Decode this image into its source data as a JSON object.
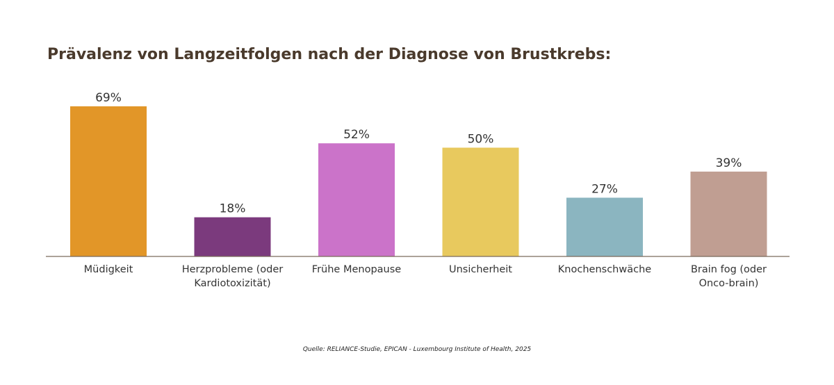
{
  "chart_data": {
    "type": "bar",
    "title": "Prävalenz von Langzeitfolgen nach der Diagnose von Brustkrebs:",
    "xlabel": "",
    "ylabel": "",
    "ylim": [
      0,
      69
    ],
    "grid": false,
    "legend": "none",
    "categories": [
      [
        "Müdigkeit"
      ],
      [
        "Herzprobleme (oder",
        "Kardiotoxizität)"
      ],
      [
        "Frühe Menopause"
      ],
      [
        "Unsicherheit"
      ],
      [
        "Knochenschwäche"
      ],
      [
        "Brain fog (oder",
        "Onco-brain)"
      ]
    ],
    "values": [
      69,
      18,
      52,
      50,
      27,
      39
    ],
    "value_labels": [
      "69%",
      "18%",
      "52%",
      "50%",
      "27%",
      "39%"
    ],
    "colors": [
      "#e29628",
      "#7b3a7d",
      "#cb73c9",
      "#e8c95e",
      "#8bb5c0",
      "#c09e92"
    ]
  },
  "source": "Quelle: RELIANCE-Studie, EPICAN - Luxembourg Institute of Health, 2025"
}
